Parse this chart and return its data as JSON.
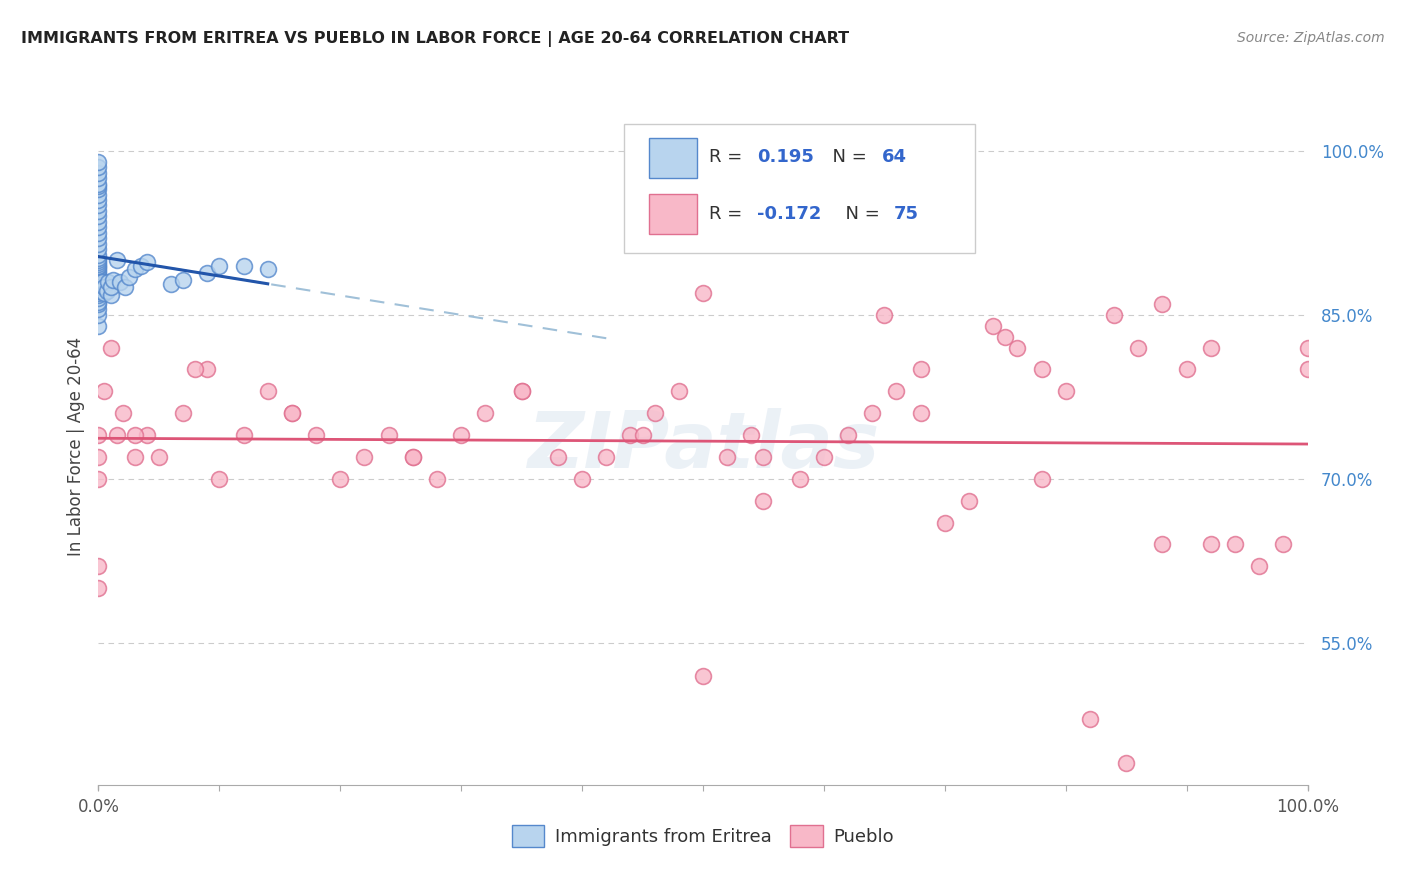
{
  "title": "IMMIGRANTS FROM ERITREA VS PUEBLO IN LABOR FORCE | AGE 20-64 CORRELATION CHART",
  "source": "Source: ZipAtlas.com",
  "ylabel": "In Labor Force | Age 20-64",
  "yticks": [
    0.55,
    0.7,
    0.85,
    1.0
  ],
  "ytick_labels": [
    "55.0%",
    "70.0%",
    "85.0%",
    "100.0%"
  ],
  "xlim": [
    0.0,
    1.0
  ],
  "ylim": [
    0.42,
    1.04
  ],
  "legend_r_blue": "0.195",
  "legend_n_blue": "64",
  "legend_r_pink": "-0.172",
  "legend_n_pink": "75",
  "legend_label_blue": "Immigrants from Eritrea",
  "legend_label_pink": "Pueblo",
  "watermark": "ZIPatlas",
  "color_blue_face": "#b8d4ee",
  "color_blue_edge": "#5588cc",
  "color_pink_face": "#f8b8c8",
  "color_pink_edge": "#e07090",
  "color_blue_line": "#2255aa",
  "color_pink_line": "#dd5577",
  "color_trendline_dash": "#a0c0d8",
  "blue_x": [
    0.0,
    0.0,
    0.0,
    0.0,
    0.0,
    0.0,
    0.0,
    0.0,
    0.0,
    0.0,
    0.0,
    0.0,
    0.0,
    0.0,
    0.0,
    0.0,
    0.0,
    0.0,
    0.0,
    0.0,
    0.0,
    0.0,
    0.0,
    0.0,
    0.0,
    0.0,
    0.0,
    0.0,
    0.0,
    0.0,
    0.0,
    0.0,
    0.0,
    0.0,
    0.0,
    0.0,
    0.0,
    0.0,
    0.0,
    0.0,
    0.0,
    0.0,
    0.0,
    0.003,
    0.005,
    0.005,
    0.007,
    0.008,
    0.01,
    0.01,
    0.012,
    0.015,
    0.018,
    0.022,
    0.025,
    0.03,
    0.035,
    0.04,
    0.06,
    0.07,
    0.09,
    0.1,
    0.12,
    0.14
  ],
  "blue_y": [
    0.84,
    0.85,
    0.855,
    0.86,
    0.862,
    0.865,
    0.868,
    0.87,
    0.872,
    0.875,
    0.878,
    0.88,
    0.882,
    0.884,
    0.886,
    0.888,
    0.89,
    0.892,
    0.894,
    0.895,
    0.896,
    0.898,
    0.9,
    0.902,
    0.905,
    0.91,
    0.915,
    0.92,
    0.925,
    0.93,
    0.935,
    0.94,
    0.945,
    0.95,
    0.955,
    0.96,
    0.965,
    0.968,
    0.97,
    0.975,
    0.98,
    0.985,
    0.99,
    0.88,
    0.87,
    0.875,
    0.872,
    0.88,
    0.868,
    0.875,
    0.882,
    0.9,
    0.88,
    0.875,
    0.885,
    0.892,
    0.895,
    0.898,
    0.878,
    0.882,
    0.888,
    0.895,
    0.895,
    0.892
  ],
  "pink_x": [
    0.0,
    0.0,
    0.0,
    0.0,
    0.0,
    0.005,
    0.01,
    0.015,
    0.02,
    0.03,
    0.04,
    0.05,
    0.07,
    0.09,
    0.1,
    0.12,
    0.14,
    0.16,
    0.18,
    0.2,
    0.22,
    0.24,
    0.26,
    0.28,
    0.3,
    0.32,
    0.35,
    0.38,
    0.4,
    0.42,
    0.44,
    0.46,
    0.48,
    0.5,
    0.52,
    0.54,
    0.55,
    0.58,
    0.6,
    0.62,
    0.64,
    0.66,
    0.68,
    0.7,
    0.72,
    0.74,
    0.76,
    0.78,
    0.8,
    0.82,
    0.84,
    0.86,
    0.88,
    0.9,
    0.92,
    0.94,
    0.96,
    0.98,
    1.0,
    1.0,
    0.5,
    0.65,
    0.75,
    0.85,
    0.88,
    0.92,
    0.03,
    0.08,
    0.16,
    0.26,
    0.35,
    0.45,
    0.55,
    0.68,
    0.78
  ],
  "pink_y": [
    0.74,
    0.72,
    0.7,
    0.62,
    0.6,
    0.78,
    0.82,
    0.74,
    0.76,
    0.72,
    0.74,
    0.72,
    0.76,
    0.8,
    0.7,
    0.74,
    0.78,
    0.76,
    0.74,
    0.7,
    0.72,
    0.74,
    0.72,
    0.7,
    0.74,
    0.76,
    0.78,
    0.72,
    0.7,
    0.72,
    0.74,
    0.76,
    0.78,
    0.52,
    0.72,
    0.74,
    0.68,
    0.7,
    0.72,
    0.74,
    0.76,
    0.78,
    0.8,
    0.66,
    0.68,
    0.84,
    0.82,
    0.8,
    0.78,
    0.48,
    0.85,
    0.82,
    0.64,
    0.8,
    0.82,
    0.64,
    0.62,
    0.64,
    0.82,
    0.8,
    0.87,
    0.85,
    0.83,
    0.44,
    0.86,
    0.64,
    0.74,
    0.8,
    0.76,
    0.72,
    0.78,
    0.74,
    0.72,
    0.76,
    0.7
  ]
}
